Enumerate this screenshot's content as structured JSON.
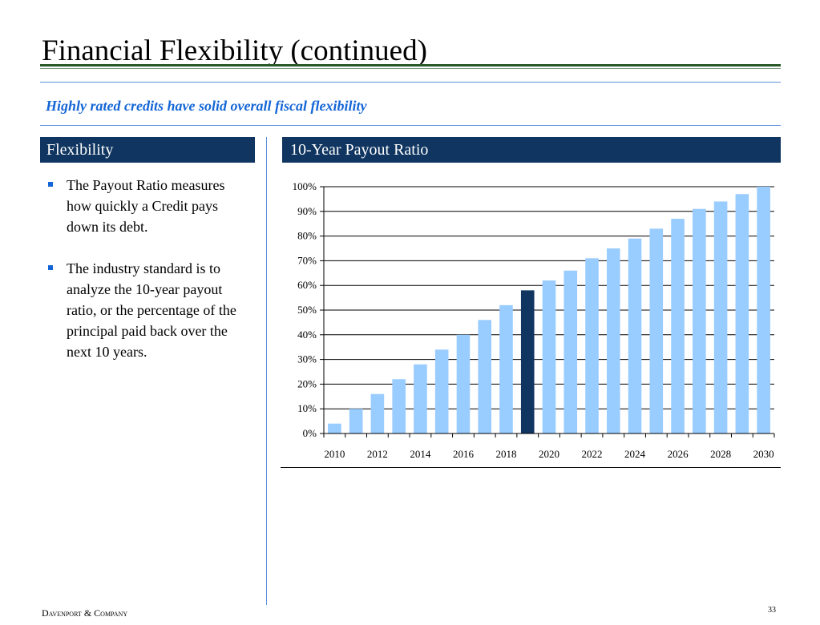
{
  "slide": {
    "title": "Financial Flexibility (continued)",
    "subtitle": "Highly rated credits have solid overall fiscal flexibility",
    "footer": "Davenport & Company",
    "page_number": "33"
  },
  "left_panel": {
    "heading": "Flexibility",
    "bullets": [
      "The Payout Ratio measures how quickly a Credit pays down its debt.",
      "The industry standard is to analyze the 10-year payout ratio, or the percentage of the principal paid back over the next 10 years."
    ]
  },
  "right_panel": {
    "heading": "10-Year Payout Ratio"
  },
  "colors": {
    "header_bg": "#0f3560",
    "accent_blue": "#1466d6",
    "bar": "#99ccff",
    "bar_highlight": "#0f3560"
  },
  "chart_data": {
    "type": "bar",
    "categories": [
      "2010",
      "2011",
      "2012",
      "2013",
      "2014",
      "2015",
      "2016",
      "2017",
      "2018",
      "2019",
      "2020",
      "2021",
      "2022",
      "2023",
      "2024",
      "2025",
      "2026",
      "2027",
      "2028",
      "2029",
      "2030"
    ],
    "values": [
      4,
      10,
      16,
      22,
      28,
      34,
      40,
      46,
      52,
      58,
      62,
      66,
      71,
      75,
      79,
      83,
      87,
      91,
      94,
      97,
      100
    ],
    "highlight_category": "2019",
    "x_tick_labels": [
      "2010",
      "2012",
      "2014",
      "2016",
      "2018",
      "2020",
      "2022",
      "2024",
      "2026",
      "2028",
      "2030"
    ],
    "y_tick_labels": [
      "0%",
      "10%",
      "20%",
      "30%",
      "40%",
      "50%",
      "60%",
      "70%",
      "80%",
      "90%",
      "100%"
    ],
    "ylim": [
      0,
      100
    ],
    "y_unit": "%",
    "grid": true,
    "legend": false
  }
}
